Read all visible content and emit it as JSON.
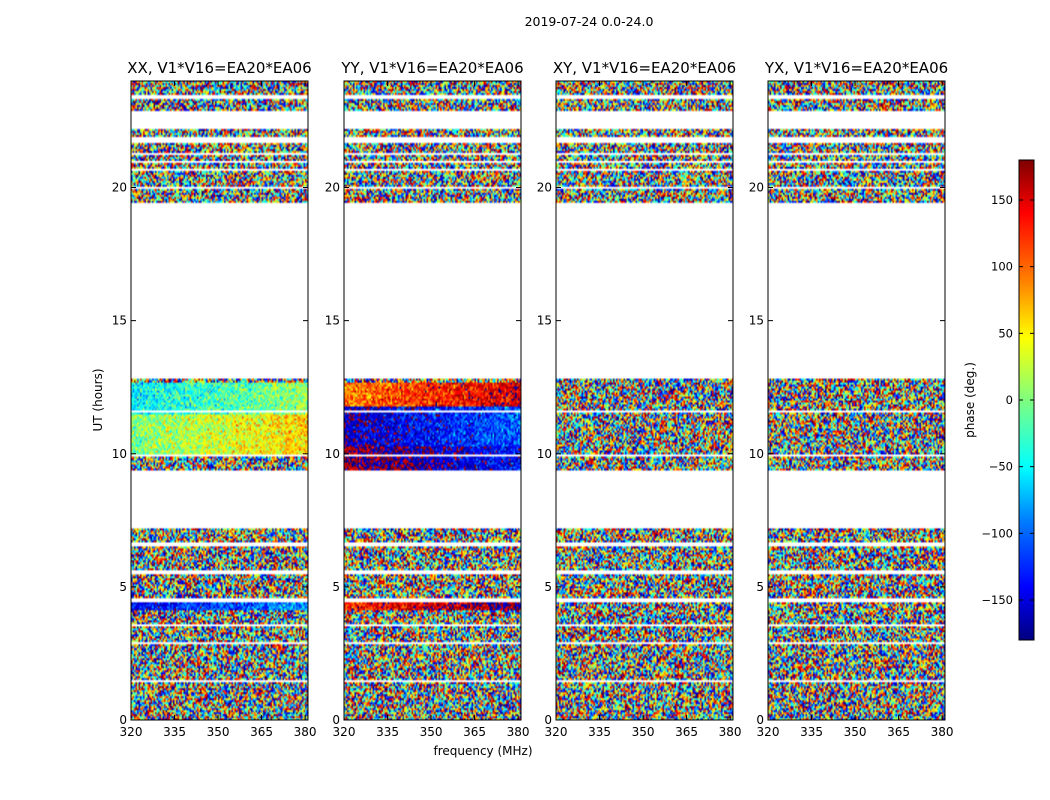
{
  "figure": {
    "suptitle": "2019-07-24 0.0-24.0",
    "ylabel": "UT (hours)",
    "xlabel": "frequency (MHz)"
  },
  "colorbar": {
    "label": "phase (deg.)",
    "range": [
      -180,
      180
    ],
    "ticks": [
      -150,
      -100,
      -50,
      0,
      50,
      100,
      150
    ],
    "tick_labels": [
      "−150",
      "−100",
      "−50",
      "0",
      "50",
      "100",
      "150"
    ],
    "colormap": "jet",
    "colors": [
      "#00007f",
      "#0000ff",
      "#007fff",
      "#00ffff",
      "#7fff7f",
      "#ffff00",
      "#ff7f00",
      "#ff0000",
      "#7f0000"
    ]
  },
  "chart_data": [
    {
      "type": "heatmap",
      "title": "XX, V1*V16=EA20*EA06",
      "xlim": [
        320,
        381
      ],
      "ylim": [
        0,
        24
      ],
      "xticks": [
        320,
        335,
        350,
        365,
        380
      ],
      "yticks": [
        0,
        5,
        10,
        15,
        20
      ],
      "coherent_phase_deg": [
        {
          "ut": [
            4.1,
            4.5
          ],
          "phase": -110
        },
        {
          "ut": [
            10.0,
            11.5
          ],
          "phase": 30
        },
        {
          "ut": [
            11.5,
            12.7
          ],
          "phase": -20
        }
      ]
    },
    {
      "type": "heatmap",
      "title": "YY, V1*V16=EA20*EA06",
      "xlim": [
        320,
        381
      ],
      "ylim": [
        0,
        24
      ],
      "xticks": [
        320,
        335,
        350,
        365,
        380
      ],
      "yticks": [
        0,
        5,
        10,
        15,
        20
      ],
      "coherent_phase_deg": [
        {
          "ut": [
            4.1,
            4.5
          ],
          "phase": 150
        },
        {
          "ut": [
            9.4,
            10.3
          ],
          "phase": -160
        },
        {
          "ut": [
            10.3,
            11.8
          ],
          "phase": -130
        },
        {
          "ut": [
            11.8,
            12.7
          ],
          "phase": 120
        }
      ]
    },
    {
      "type": "heatmap",
      "title": "XY, V1*V16=EA20*EA06",
      "xlim": [
        320,
        381
      ],
      "ylim": [
        0,
        24
      ],
      "xticks": [
        320,
        335,
        350,
        365,
        380
      ],
      "yticks": [
        0,
        5,
        10,
        15,
        20
      ],
      "coherent_phase_deg": []
    },
    {
      "type": "heatmap",
      "title": "YX, V1*V16=EA20*EA06",
      "xlim": [
        320,
        381
      ],
      "ylim": [
        0,
        24
      ],
      "xticks": [
        320,
        335,
        350,
        365,
        380
      ],
      "yticks": [
        0,
        5,
        10,
        15,
        20
      ],
      "coherent_phase_deg": []
    }
  ],
  "data_segments_ut": [
    [
      0,
      7.2
    ],
    [
      9.4,
      12.8
    ],
    [
      19.4,
      20.6
    ],
    [
      20.7,
      21.7
    ],
    [
      21.9,
      22.2
    ],
    [
      22.9,
      24
    ]
  ],
  "flagged_gaps_ut": [
    1.45,
    2.9,
    3.55,
    4.5,
    5.55,
    6.6,
    9.95,
    11.6,
    20.0,
    20.95,
    21.25,
    23.4
  ]
}
